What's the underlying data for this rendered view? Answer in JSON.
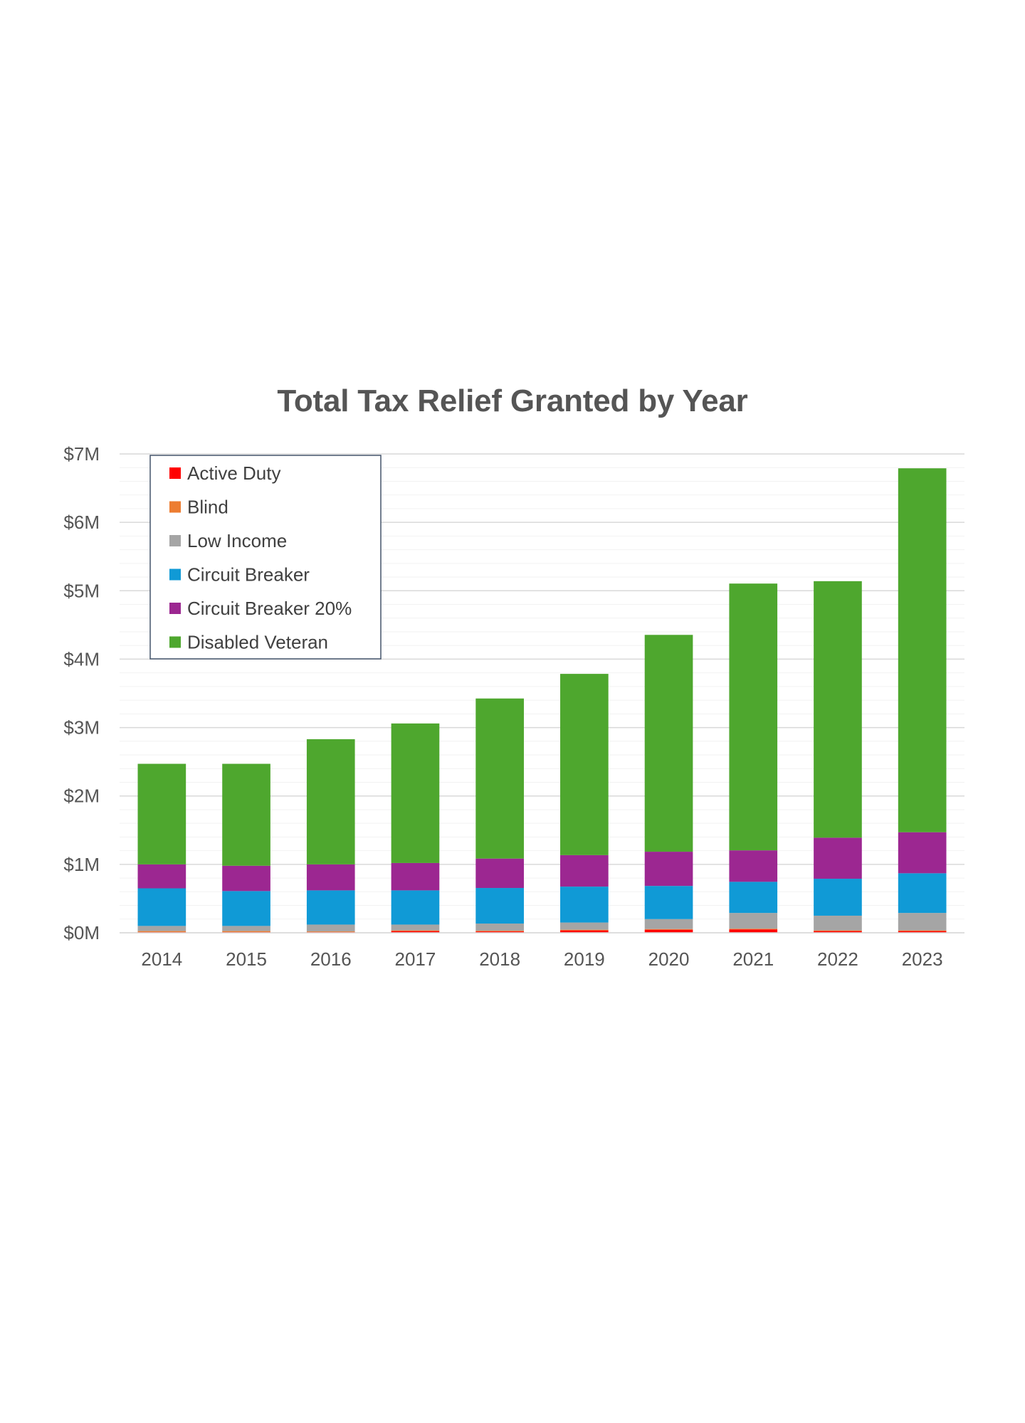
{
  "chart_data": {
    "type": "bar",
    "stacked": true,
    "title": "Total Tax Relief Granted by Year",
    "xlabel": "",
    "ylabel": "",
    "categories": [
      "2014",
      "2015",
      "2016",
      "2017",
      "2018",
      "2019",
      "2020",
      "2021",
      "2022",
      "2023"
    ],
    "yticks": [
      "$0M",
      "$1M",
      "$2M",
      "$3M",
      "$4M",
      "$5M",
      "$6M",
      "$7M"
    ],
    "ylim": [
      0,
      7000000
    ],
    "ytick_step": 1000000,
    "minor_gridlines_per_major": 5,
    "grid": true,
    "legend": {
      "placement": "top-left",
      "boxed": true
    },
    "series": [
      {
        "name": "Active Duty",
        "color": "#ff0000",
        "values": [
          10000,
          10000,
          10000,
          25000,
          20000,
          35000,
          45000,
          50000,
          25000,
          25000
        ]
      },
      {
        "name": "Blind",
        "color": "#ed7d31",
        "values": [
          15000,
          15000,
          10000,
          10000,
          10000,
          10000,
          10000,
          10000,
          10000,
          10000
        ]
      },
      {
        "name": "Low Income",
        "color": "#a5a5a5",
        "values": [
          75000,
          75000,
          100000,
          85000,
          105000,
          105000,
          145000,
          230000,
          215000,
          255000
        ]
      },
      {
        "name": "Circuit Breaker",
        "color": "#109ad6",
        "values": [
          550000,
          510000,
          500000,
          500000,
          520000,
          525000,
          485000,
          455000,
          540000,
          580000
        ]
      },
      {
        "name": "Circuit Breaker 20%",
        "color": "#9c2791",
        "values": [
          350000,
          370000,
          380000,
          400000,
          430000,
          460000,
          500000,
          460000,
          600000,
          600000
        ]
      },
      {
        "name": "Disabled Veteran",
        "color": "#4ea72e",
        "values": [
          1470000,
          1490000,
          1830000,
          2040000,
          2340000,
          2650000,
          3170000,
          3900000,
          3750000,
          5320000
        ]
      }
    ]
  }
}
